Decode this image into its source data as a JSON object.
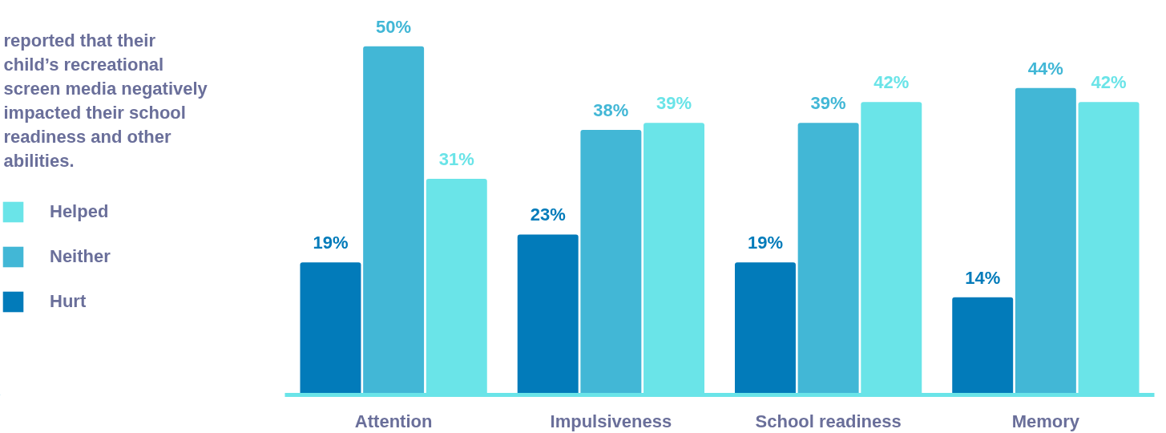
{
  "chart_data": {
    "type": "bar",
    "title": "reported that their\nchild’s recreational\nscreen media negatively\nimpacted their school\nreadiness and other\nabilities.",
    "categories": [
      "Attention",
      "Impulsiveness",
      "School readiness",
      "Memory"
    ],
    "series": [
      {
        "name": "Hurt",
        "color": "#027bba",
        "values": [
          19,
          23,
          19,
          14
        ],
        "value_labels": [
          "19%",
          "23%",
          "19%",
          "14%"
        ]
      },
      {
        "name": "Neither",
        "color": "#42b7d6",
        "values": [
          50,
          38,
          39,
          44
        ],
        "value_labels": [
          "50%",
          "38%",
          "39%",
          "44%"
        ]
      },
      {
        "name": "Helped",
        "color": "#6ae4e8",
        "values": [
          31,
          39,
          42,
          42
        ],
        "value_labels": [
          "31%",
          "39%",
          "42%",
          "42%"
        ]
      }
    ],
    "legend": "left",
    "grid": false
  }
}
